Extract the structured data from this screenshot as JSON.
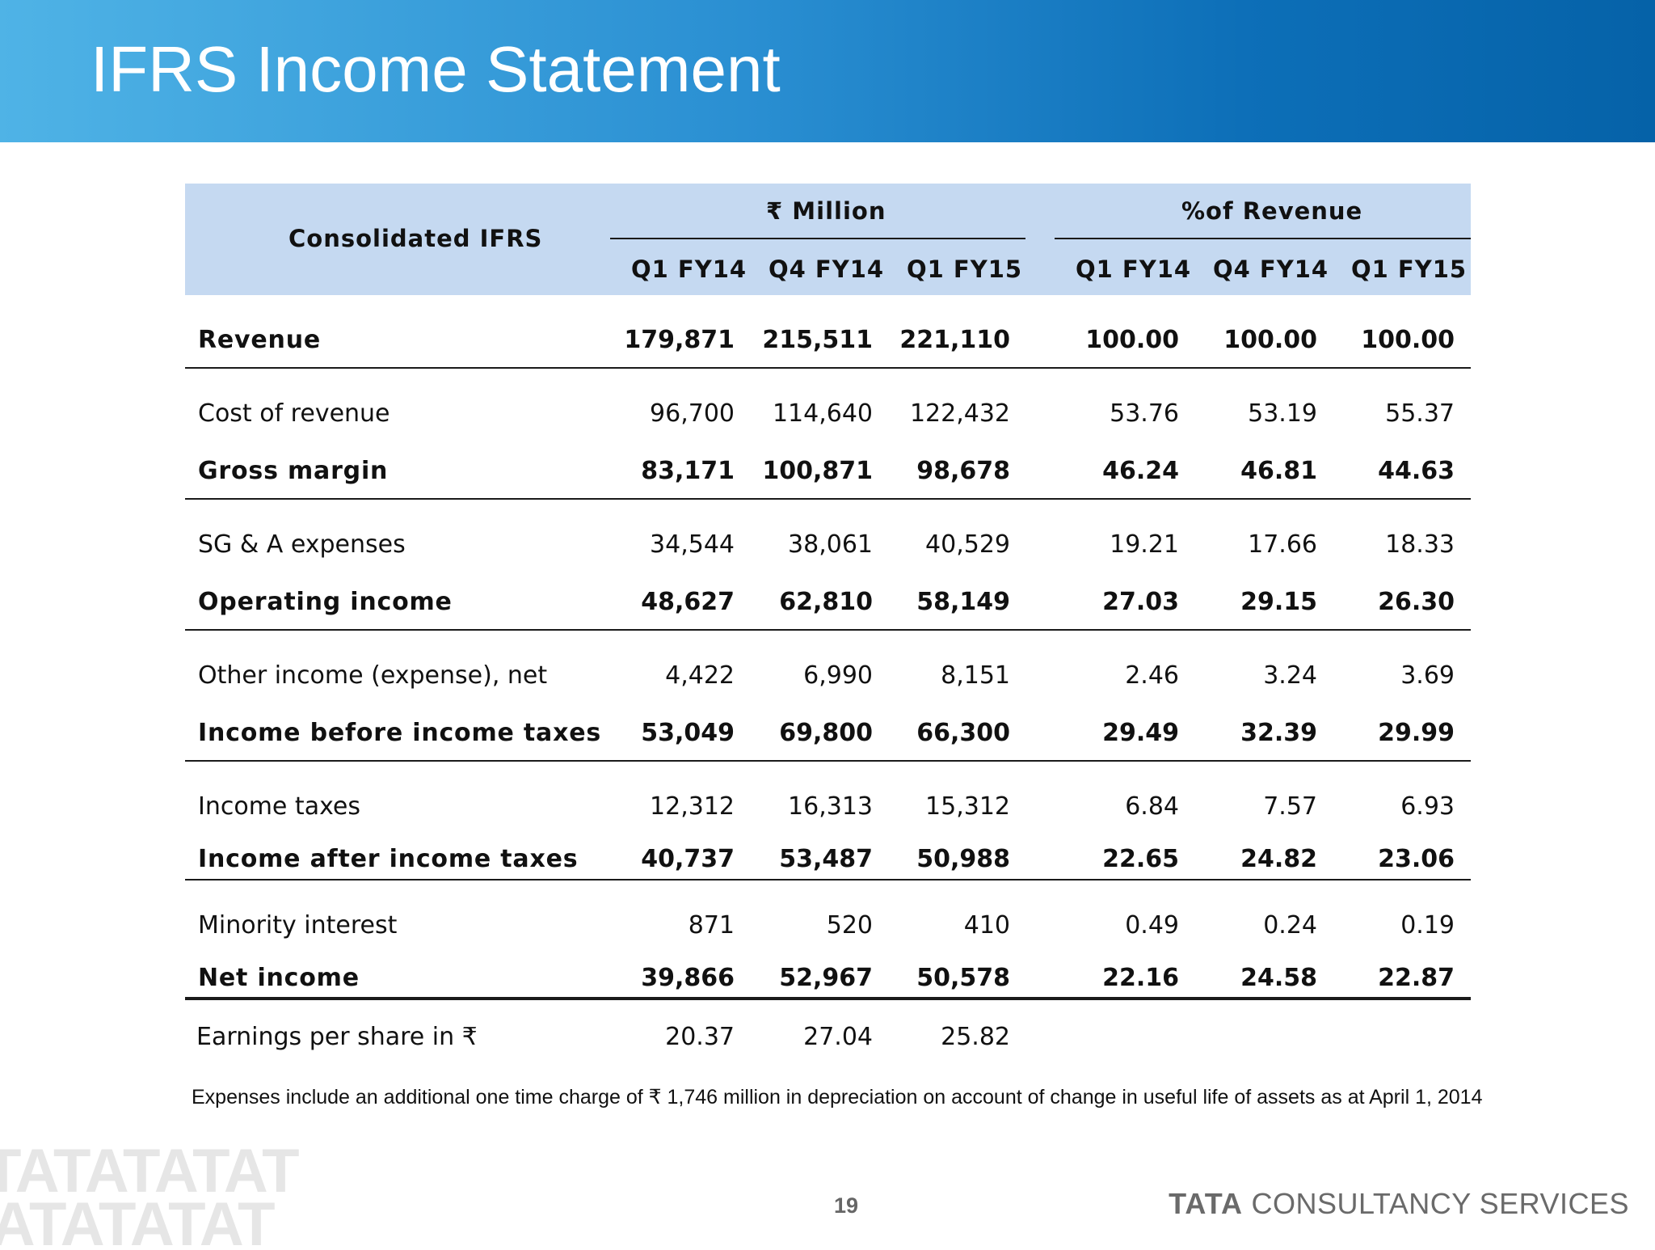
{
  "header": {
    "title": "IFRS Income Statement"
  },
  "table": {
    "row_header": "Consolidated IFRS",
    "groups": [
      "₹ Million",
      "%of Revenue"
    ],
    "columns": [
      "Q1 FY14",
      "Q4 FY14",
      "Q1 FY15",
      "Q1 FY14",
      "Q4 FY14",
      "Q1 FY15"
    ],
    "rows": [
      {
        "label": "Revenue",
        "bold": true,
        "values": [
          "179,871",
          "215,511",
          "221,110",
          "100.00",
          "100.00",
          "100.00"
        ]
      },
      {
        "label": "Cost of revenue",
        "bold": false,
        "values": [
          "96,700",
          "114,640",
          "122,432",
          "53.76",
          "53.19",
          "55.37"
        ]
      },
      {
        "label": "Gross margin",
        "bold": true,
        "values": [
          "83,171",
          "100,871",
          "98,678",
          "46.24",
          "46.81",
          "44.63"
        ]
      },
      {
        "label": "SG & A expenses",
        "bold": false,
        "values": [
          "34,544",
          "38,061",
          "40,529",
          "19.21",
          "17.66",
          "18.33"
        ]
      },
      {
        "label": "Operating income",
        "bold": true,
        "values": [
          "48,627",
          "62,810",
          "58,149",
          "27.03",
          "29.15",
          "26.30"
        ]
      },
      {
        "label": "Other income (expense), net",
        "bold": false,
        "values": [
          "4,422",
          "6,990",
          "8,151",
          "2.46",
          "3.24",
          "3.69"
        ]
      },
      {
        "label": "Income before income taxes",
        "bold": true,
        "values": [
          "53,049",
          "69,800",
          "66,300",
          "29.49",
          "32.39",
          "29.99"
        ]
      },
      {
        "label": "Income taxes",
        "bold": false,
        "values": [
          "12,312",
          "16,313",
          "15,312",
          "6.84",
          "7.57",
          "6.93"
        ]
      },
      {
        "label": "Income after income taxes",
        "bold": true,
        "values": [
          "40,737",
          "53,487",
          "50,988",
          "22.65",
          "24.82",
          "23.06"
        ]
      },
      {
        "label": "Minority interest",
        "bold": false,
        "values": [
          "871",
          "520",
          "410",
          "0.49",
          "0.24",
          "0.19"
        ]
      },
      {
        "label": "Net income",
        "bold": true,
        "values": [
          "39,866",
          "52,967",
          "50,578",
          "22.16",
          "24.58",
          "22.87"
        ]
      },
      {
        "label": "Earnings per share in ₹",
        "bold": false,
        "values": [
          "20.37",
          "27.04",
          "25.82",
          "",
          "",
          ""
        ]
      }
    ]
  },
  "footnote": "Expenses include an additional one time charge of ₹ 1,746 million in depreciation on account of change in useful life of assets as at April 1, 2014",
  "footer": {
    "page_number": "19",
    "brand_bold": "TATA",
    "brand_rest": " CONSULTANCY SERVICES",
    "watermark": "TATATATAT"
  }
}
